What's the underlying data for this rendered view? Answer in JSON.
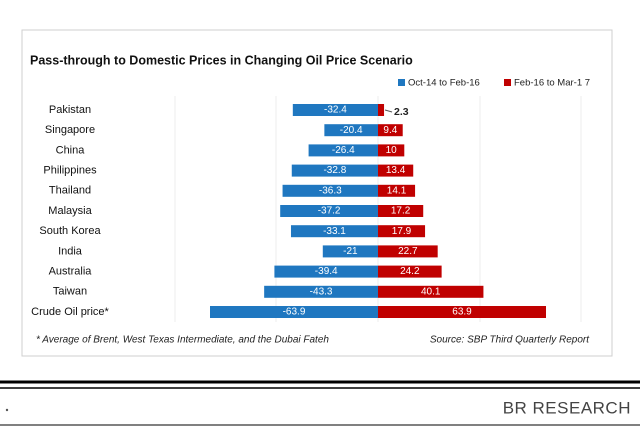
{
  "chart_data": {
    "type": "diverging-bar",
    "title": "Pass-through to Domestic Prices in Changing Oil Price Scenario",
    "categories": [
      "Pakistan",
      "Singapore",
      "China",
      "Philippines",
      "Thailand",
      "Malaysia",
      "South Korea",
      "India",
      "Australia",
      "Taiwan",
      "Crude  Oil price*"
    ],
    "series": [
      {
        "name": "Oct-14 to Feb-16",
        "color": "#1f77c0",
        "values": [
          -32.4,
          -20.4,
          -26.4,
          -32.8,
          -36.3,
          -37.2,
          -33.1,
          -21,
          -39.4,
          -43.3,
          -63.9
        ]
      },
      {
        "name": "Feb-16 to Mar-1 7",
        "color": "#c00000",
        "values": [
          2.3,
          9.4,
          10,
          13.4,
          14.1,
          17.2,
          17.9,
          22.7,
          24.2,
          40.1,
          63.9
        ]
      }
    ],
    "footnote": "* Average of Brent, West Texas Intermediate, and the Dubai Fateh",
    "source": "Source: SBP Third Quarterly Report",
    "brand": "BR RESEARCH"
  }
}
